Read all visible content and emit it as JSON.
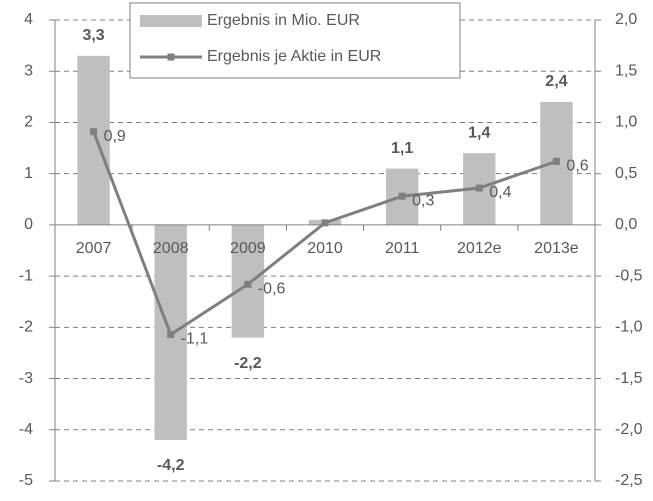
{
  "chart_data": {
    "type": "bar",
    "categories": [
      "2007",
      "2008",
      "2009",
      "2010",
      "2011",
      "2012e",
      "2013e"
    ],
    "series": [
      {
        "name": "Ergebnis in Mio. EUR",
        "type": "bar",
        "color": "#bfbfbf",
        "values": [
          3.3,
          -4.2,
          -2.2,
          0.1,
          1.1,
          1.4,
          2.4
        ],
        "value_labels": [
          "3,3",
          "-4,2",
          "-2,2",
          null,
          "1,1",
          "1,4",
          "2,4"
        ]
      },
      {
        "name": "Ergebnis je Aktie in EUR",
        "type": "line",
        "axis": "y2",
        "color": "#7f7f7f",
        "values": [
          0.91,
          -1.07,
          -0.58,
          0.02,
          0.28,
          0.36,
          0.62
        ],
        "value_labels": [
          "0,9",
          "-1,1",
          "-0,6",
          null,
          "0,3",
          "0,4",
          "0,6"
        ]
      }
    ],
    "ylim": [
      -5,
      4
    ],
    "yticks": [
      -5,
      -4,
      -3,
      -2,
      -1,
      0,
      1,
      2,
      3,
      4
    ],
    "y2lim": [
      -2.5,
      2.0
    ],
    "y2ticks": [
      {
        "value": -2.5,
        "label": "-2,5"
      },
      {
        "value": -2.0,
        "label": "-2,0"
      },
      {
        "value": -1.5,
        "label": "-1,5"
      },
      {
        "value": -1.0,
        "label": "-1,0"
      },
      {
        "value": -0.5,
        "label": "-0,5"
      },
      {
        "value": 0.0,
        "label": "0,0"
      },
      {
        "value": 0.5,
        "label": "0,5"
      },
      {
        "value": 1.0,
        "label": "1,0"
      },
      {
        "value": 1.5,
        "label": "1,5"
      },
      {
        "value": 2.0,
        "label": "2,0"
      }
    ],
    "grid": true
  }
}
